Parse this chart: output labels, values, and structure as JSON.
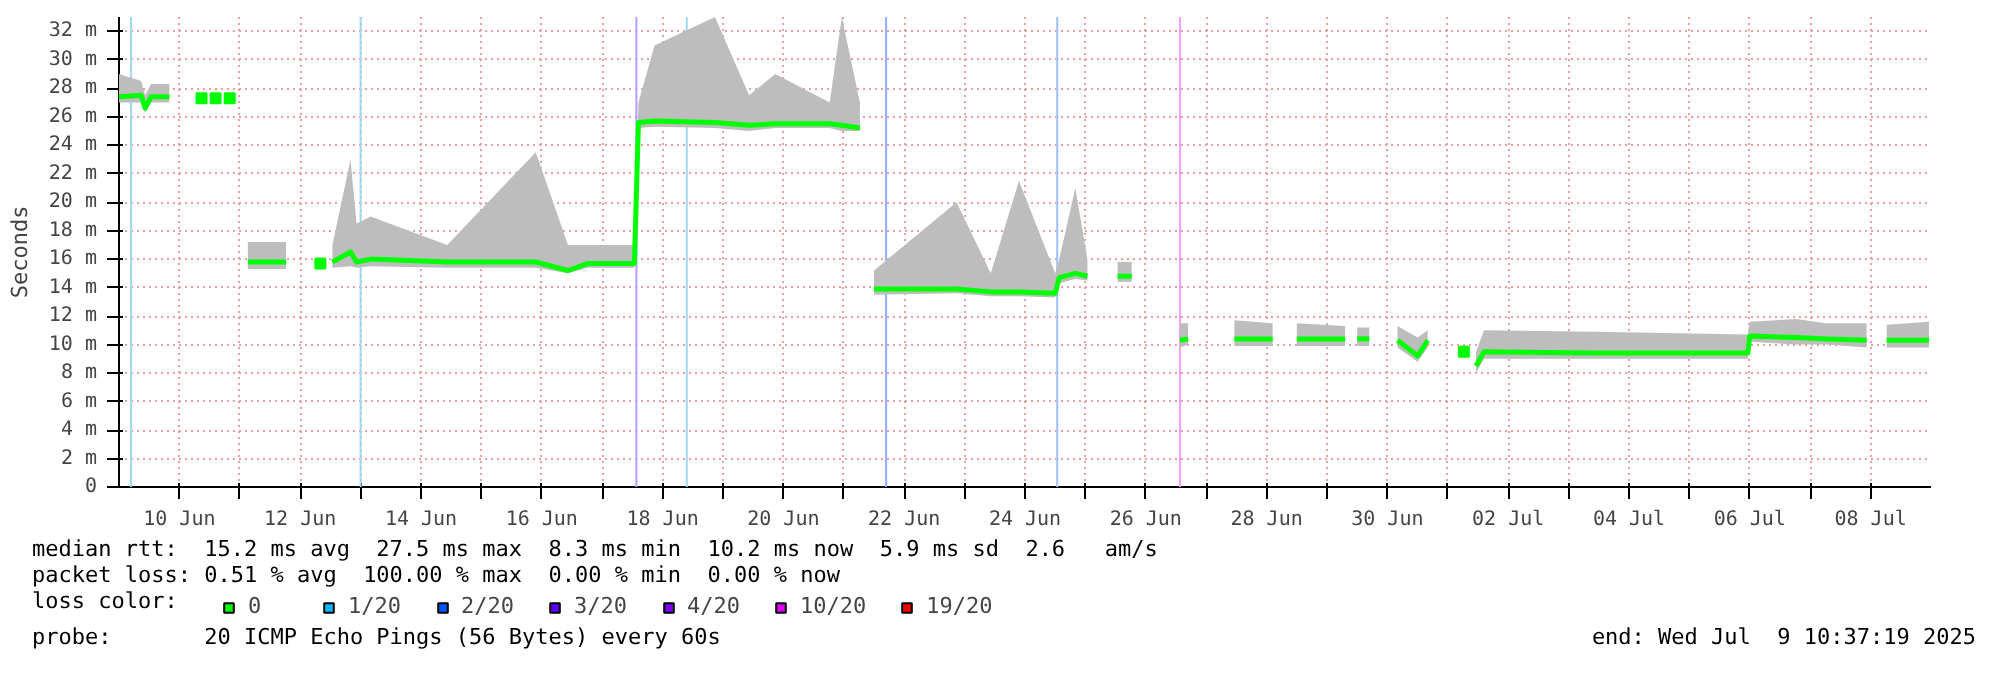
{
  "chart_data": {
    "type": "line",
    "ylabel": "Seconds",
    "x": [
      "2025-06-09T00:00",
      "2025-06-09T08:48",
      "2025-06-09T10:24",
      "2025-06-09T12:48",
      "2025-06-09T20:00",
      null,
      "2025-06-11T03:12",
      "2025-06-11T18:24",
      null,
      "2025-06-12T12:48",
      "2025-06-12T20:00",
      "2025-06-12T22:24",
      "2025-06-13T04:00",
      "2025-06-14T10:24",
      "2025-06-15T21:36",
      "2025-06-16T10:24",
      "2025-06-16T18:24",
      "2025-06-17T12:48",
      "2025-06-17T14:24",
      "2025-06-17T20:48",
      "2025-06-18T20:48",
      "2025-06-19T10:24",
      "2025-06-19T20:48",
      "2025-06-20T18:24",
      "2025-06-20T23:12",
      "2025-06-21T06:24",
      null,
      "2025-06-21T12:00",
      "2025-06-22T20:48",
      "2025-06-23T10:24",
      "2025-06-23T21:36",
      "2025-06-24T12:00",
      "2025-06-24T13:36",
      "2025-06-24T20:00",
      "2025-06-25T00:48",
      null,
      "2025-06-25T12:48",
      "2025-06-25T18:24",
      null,
      "2025-06-26T13:36",
      "2025-06-26T16:48",
      null,
      "2025-06-27T11:12",
      "2025-06-28T02:24",
      null,
      "2025-06-28T12:00",
      "2025-06-29T07:12",
      null,
      "2025-06-29T12:00",
      "2025-06-29T16:48",
      null,
      "2025-06-30T04:00",
      "2025-06-30T12:00",
      "2025-06-30T16:00",
      null,
      "2025-07-01T11:12",
      "2025-07-01T14:24",
      "2025-07-03T10:24",
      "2025-07-05T23:12",
      "2025-07-06T00:00",
      "2025-07-06T18:24",
      "2025-07-07T06:24",
      "2025-07-07T22:24",
      null,
      "2025-07-08T06:24",
      "2025-07-08T23:12"
    ],
    "series": [
      {
        "name": "0",
        "color": "#00ff00",
        "values": [
          27.4,
          27.5,
          26.6,
          27.4,
          27.4,
          null,
          15.8,
          15.8,
          null,
          15.8,
          16.5,
          15.8,
          16,
          15.8,
          15.8,
          15.2,
          15.7,
          15.7,
          25.6,
          25.7,
          25.6,
          25.4,
          25.5,
          25.5,
          25.4,
          25.2,
          null,
          13.9,
          13.9,
          13.7,
          13.7,
          13.6,
          14.7,
          15,
          14.8,
          null,
          14.8,
          14.8,
          null,
          10.3,
          10.4,
          null,
          10.4,
          10.4,
          null,
          10.4,
          10.4,
          null,
          10.4,
          10.4,
          null,
          10.3,
          9.2,
          10.3,
          null,
          8.5,
          9.5,
          9.4,
          9.4,
          10.6,
          10.5,
          10.4,
          10.3,
          null,
          10.3,
          10.3
        ],
        "lower": [
          27,
          27,
          26.3,
          27,
          27,
          null,
          15.3,
          15.3,
          null,
          15.4,
          15.5,
          15.4,
          15.5,
          15.4,
          15.4,
          15,
          15.4,
          15.4,
          25.2,
          25.3,
          25.2,
          25,
          25.2,
          25.2,
          25,
          25,
          null,
          13.5,
          13.6,
          13.4,
          13.4,
          13.3,
          14.3,
          14.6,
          14.5,
          null,
          14.4,
          14.4,
          null,
          9.8,
          10,
          null,
          9.9,
          9.9,
          null,
          9.9,
          9.9,
          null,
          9.9,
          9.9,
          null,
          9.8,
          8.8,
          9.8,
          null,
          8,
          9,
          9,
          9,
          10.2,
          10,
          10,
          9.8,
          null,
          9.8,
          9.8
        ],
        "upper": [
          29,
          28.5,
          27.5,
          28.3,
          28.3,
          null,
          17.2,
          17.2,
          null,
          17,
          23,
          18.5,
          19,
          17,
          23.5,
          17,
          17,
          17,
          27,
          31,
          33,
          27.5,
          29,
          27,
          33,
          27,
          null,
          15.2,
          20,
          15,
          21.5,
          15,
          16,
          21,
          16,
          null,
          15.8,
          15.8,
          null,
          11.5,
          11.5,
          null,
          11.7,
          11.5,
          null,
          11.5,
          11.3,
          null,
          11.2,
          11.2,
          null,
          11.3,
          10.5,
          11,
          null,
          9.5,
          11,
          10.9,
          10.7,
          11.6,
          11.8,
          11.5,
          11.5,
          null,
          11.4,
          11.6
        ]
      },
      {
        "type": "scatter",
        "color": "#00ff00",
        "x": [
          "2025-06-10T08:48",
          "2025-06-10T14:24",
          "2025-06-10T20:00",
          "2025-06-12T08:00",
          "2025-07-01T06:24"
        ],
        "values": [
          27.3,
          27.3,
          27.3,
          15.7,
          9.5
        ]
      },
      {
        "name": "1/20",
        "color": "#00b8ff",
        "values": [
          null,
          null,
          null,
          null,
          null,
          null,
          null,
          null,
          null,
          null,
          null,
          null,
          null,
          null,
          null,
          null,
          null,
          null,
          null,
          null,
          null,
          null,
          null,
          null,
          null,
          null,
          null,
          null,
          null,
          null,
          null,
          null,
          null,
          null,
          null,
          null,
          null,
          null,
          null,
          null,
          null,
          null,
          null,
          null,
          null,
          null,
          null,
          null,
          null,
          null,
          null,
          null,
          null,
          null,
          null,
          null,
          null,
          null,
          null,
          null,
          null,
          null,
          null,
          null,
          null,
          null
        ]
      },
      {
        "name": "2/20",
        "color": "#0059ff",
        "values": [
          null,
          null,
          null,
          null,
          null,
          null,
          null,
          null,
          null,
          null,
          null,
          null,
          null,
          null,
          null,
          null,
          null,
          null,
          null,
          null,
          null,
          null,
          null,
          null,
          null,
          null,
          null,
          null,
          null,
          null,
          null,
          null,
          null,
          null,
          null,
          null,
          null,
          null,
          null,
          null,
          null,
          null,
          null,
          null,
          null,
          null,
          null,
          null,
          null,
          null,
          null,
          null,
          null,
          null,
          null,
          null,
          null,
          null,
          null,
          null,
          null,
          null,
          null,
          null,
          null,
          null
        ]
      },
      {
        "name": "3/20",
        "color": "#5e00ff",
        "values": [
          null,
          null,
          null,
          null,
          null,
          null,
          null,
          null,
          null,
          null,
          null,
          null,
          null,
          null,
          null,
          null,
          null,
          null,
          null,
          null,
          null,
          null,
          null,
          null,
          null,
          null,
          null,
          null,
          null,
          null,
          null,
          null,
          null,
          null,
          null,
          null,
          null,
          null,
          null,
          null,
          null,
          null,
          null,
          null,
          null,
          null,
          null,
          null,
          null,
          null,
          null,
          null,
          null,
          null,
          null,
          null,
          null,
          null,
          null,
          null,
          null,
          null,
          null,
          null,
          null,
          null
        ]
      },
      {
        "name": "4/20",
        "color": "#7e00ff",
        "values": [
          null,
          null,
          null,
          null,
          null,
          null,
          null,
          null,
          null,
          null,
          null,
          null,
          null,
          null,
          null,
          null,
          null,
          null,
          null,
          null,
          null,
          null,
          null,
          null,
          null,
          null,
          null,
          null,
          null,
          null,
          null,
          null,
          null,
          null,
          null,
          null,
          null,
          null,
          null,
          null,
          null,
          null,
          null,
          null,
          null,
          null,
          null,
          null,
          null,
          null,
          null,
          null,
          null,
          null,
          null,
          null,
          null,
          null,
          null,
          null,
          null,
          null,
          null,
          null,
          null,
          null
        ]
      },
      {
        "name": "10/20",
        "color": "#dd00ff",
        "values": [
          null,
          null,
          null,
          null,
          null,
          null,
          null,
          null,
          null,
          null,
          null,
          null,
          null,
          null,
          null,
          null,
          null,
          null,
          null,
          null,
          null,
          null,
          null,
          null,
          null,
          null,
          null,
          null,
          null,
          null,
          null,
          null,
          null,
          null,
          null,
          null,
          null,
          null,
          null,
          null,
          null,
          null,
          null,
          null,
          null,
          null,
          null,
          null,
          null,
          null,
          null,
          null,
          null,
          null,
          null,
          null,
          null,
          null,
          null,
          null,
          null,
          null,
          null,
          null,
          null,
          null
        ]
      },
      {
        "name": "19/20",
        "color": "#ff0000",
        "values": [
          null,
          null,
          null,
          null,
          null,
          null,
          null,
          null,
          null,
          null,
          null,
          null,
          null,
          null,
          null,
          null,
          null,
          null,
          null,
          null,
          null,
          null,
          null,
          null,
          null,
          null,
          null,
          null,
          null,
          null,
          null,
          null,
          null,
          null,
          null,
          null,
          null,
          null,
          null,
          null,
          null,
          null,
          null,
          null,
          null,
          null,
          null,
          null,
          null,
          null,
          null,
          null,
          null,
          null,
          null,
          null,
          null,
          null,
          null,
          null,
          null,
          null,
          null,
          null,
          null,
          null
        ]
      }
    ],
    "legend_title": "loss color:",
    "legend": "bottom",
    "grid": true,
    "line_style": "solid",
    "xlim": [
      "2025-06-09T00:00",
      "2025-07-09T00:00"
    ],
    "xticks": [
      {
        "value": "2025-06-10",
        "label": "10 Jun"
      },
      {
        "value": "2025-06-11",
        "label": null
      },
      {
        "value": "2025-06-12",
        "label": "12 Jun"
      },
      {
        "value": "2025-06-13",
        "label": null
      },
      {
        "value": "2025-06-14",
        "label": "14 Jun"
      },
      {
        "value": "2025-06-15",
        "label": null
      },
      {
        "value": "2025-06-16",
        "label": "16 Jun"
      },
      {
        "value": "2025-06-17",
        "label": null
      },
      {
        "value": "2025-06-18",
        "label": "18 Jun"
      },
      {
        "value": "2025-06-19",
        "label": null
      },
      {
        "value": "2025-06-20",
        "label": "20 Jun"
      },
      {
        "value": "2025-06-21",
        "label": null
      },
      {
        "value": "2025-06-22",
        "label": "22 Jun"
      },
      {
        "value": "2025-06-23",
        "label": null
      },
      {
        "value": "2025-06-24",
        "label": "24 Jun"
      },
      {
        "value": "2025-06-25",
        "label": null
      },
      {
        "value": "2025-06-26",
        "label": "26 Jun"
      },
      {
        "value": "2025-06-27",
        "label": null
      },
      {
        "value": "2025-06-28",
        "label": "28 Jun"
      },
      {
        "value": "2025-06-29",
        "label": null
      },
      {
        "value": "2025-06-30",
        "label": "30 Jun"
      },
      {
        "value": "2025-07-01",
        "label": null
      },
      {
        "value": "2025-07-02",
        "label": "02 Jul"
      },
      {
        "value": "2025-07-03",
        "label": null
      },
      {
        "value": "2025-07-04",
        "label": "04 Jul"
      },
      {
        "value": "2025-07-05",
        "label": null
      },
      {
        "value": "2025-07-06",
        "label": "06 Jul"
      },
      {
        "value": "2025-07-07",
        "label": null
      },
      {
        "value": "2025-07-08",
        "label": "08 Jul"
      }
    ],
    "ylim": [
      0,
      33
    ],
    "yticks": [
      0,
      {
        "value": 2,
        "label": "2 m"
      },
      {
        "value": 4,
        "label": "4 m"
      },
      {
        "value": 6,
        "label": "6 m"
      },
      {
        "value": 8,
        "label": "8 m"
      },
      {
        "value": 10,
        "label": "10 m"
      },
      {
        "value": 12,
        "label": "12 m"
      },
      {
        "value": 14,
        "label": "14 m"
      },
      {
        "value": 16,
        "label": "16 m"
      },
      {
        "value": 18,
        "label": "18 m"
      },
      {
        "value": 20,
        "label": "20 m"
      },
      {
        "value": 22,
        "label": "22 m"
      },
      {
        "value": 24,
        "label": "24 m"
      },
      {
        "value": 26,
        "label": "26 m"
      },
      {
        "value": 28,
        "label": "28 m"
      },
      {
        "value": 30,
        "label": "30 m"
      },
      {
        "value": 32,
        "label": "32 m"
      }
    ],
    "ref_lines": [
      {
        "axis": "x",
        "value": "2025-06-09T04:48",
        "color": "#a0d8f0"
      },
      {
        "axis": "x",
        "value": "2025-06-13T00:00",
        "color": "#a0d8f0"
      },
      {
        "axis": "x",
        "value": "2025-06-17T13:36",
        "color": "#b89cff"
      },
      {
        "axis": "x",
        "value": "2025-06-18T09:36",
        "color": "#a0d8f0"
      },
      {
        "axis": "x",
        "value": "2025-06-21T16:48",
        "color": "#8fb0ff"
      },
      {
        "axis": "x",
        "value": "2025-06-24T12:48",
        "color": "#a0c0ff"
      },
      {
        "axis": "x",
        "value": "2025-06-26T13:36",
        "color": "#f0a0f8"
      }
    ],
    "annotations": [
      "median rtt:  15.2 ms avg  27.5 ms max  8.3 ms min  10.2 ms now  5.9 ms sd  2.6   am/s",
      "packet loss: 0.51 % avg  100.00 % max  0.00 % min  0.00 % now",
      "probe:       20 ICMP Echo Pings (56 Bytes) every 60s",
      "end: Wed Jul  9 10:37:19 2025"
    ]
  }
}
